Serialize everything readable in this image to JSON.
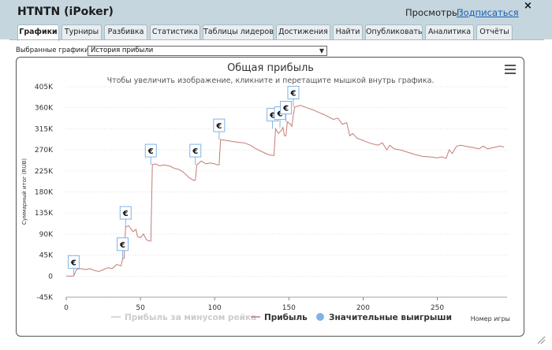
{
  "window": {
    "title": "HTNTN (iPoker)",
    "views_label": "Просмотры:",
    "subscribe_label": "Подписаться",
    "close_label": "×"
  },
  "tabs": [
    {
      "label": "Графики",
      "active": true
    },
    {
      "label": "Турниры",
      "active": false
    },
    {
      "label": "Разбивка",
      "active": false
    },
    {
      "label": "Статистика",
      "active": false
    },
    {
      "label": "Таблицы лидеров",
      "active": false
    },
    {
      "label": "Достижения",
      "active": false
    },
    {
      "label": "Найти",
      "active": false
    },
    {
      "label": "Опубликовать",
      "active": false
    },
    {
      "label": "Аналитика",
      "active": false
    },
    {
      "label": "Отчёты",
      "active": false
    }
  ],
  "graph_select": {
    "label": "Выбранные графики:",
    "value": "История прибыли"
  },
  "chart_data": {
    "type": "line",
    "title": "Общая прибыль",
    "subtitle": "Чтобы увеличить изображение, кликните и перетащите мышкой внутрь графика.",
    "xlabel": "Номер игры",
    "ylabel": "Суммарный итог (RUB)",
    "xlim": [
      0,
      297
    ],
    "ylim": [
      -45000,
      405000
    ],
    "x_ticks": [
      0,
      50,
      100,
      150,
      200,
      250
    ],
    "y_ticks": [
      -45000,
      0,
      45000,
      90000,
      135000,
      180000,
      225000,
      270000,
      315000,
      360000,
      405000
    ],
    "y_tick_labels": [
      "-45K",
      "0",
      "45K",
      "90K",
      "135K",
      "180K",
      "225K",
      "270K",
      "315K",
      "360K",
      "405K"
    ],
    "grid": true,
    "legend_position": "bottom",
    "legend": [
      {
        "name": "Прибыль за минусом рейка",
        "color": "#cccccc",
        "marker": "line",
        "disabled": true
      },
      {
        "name": "Прибыль",
        "color": "#c47a76",
        "marker": "line",
        "disabled": false
      },
      {
        "name": "Значительные выигрыши",
        "color": "#7fb3e8",
        "marker": "dot",
        "disabled": false
      }
    ],
    "series": [
      {
        "name": "Прибыль",
        "color": "#c47a76",
        "points": [
          [
            0,
            0
          ],
          [
            5,
            0
          ],
          [
            7,
            15000
          ],
          [
            10,
            16000
          ],
          [
            13,
            14000
          ],
          [
            16,
            16000
          ],
          [
            19,
            12000
          ],
          [
            22,
            10000
          ],
          [
            25,
            14000
          ],
          [
            28,
            18000
          ],
          [
            31,
            16000
          ],
          [
            34,
            25000
          ],
          [
            37,
            22000
          ],
          [
            38,
            38000
          ],
          [
            39,
            38000
          ],
          [
            40,
            105000
          ],
          [
            42,
            108000
          ],
          [
            45,
            95000
          ],
          [
            47,
            100000
          ],
          [
            48,
            85000
          ],
          [
            50,
            82000
          ],
          [
            52,
            90000
          ],
          [
            54,
            78000
          ],
          [
            56,
            75000
          ],
          [
            57,
            75000
          ],
          [
            58,
            238000
          ],
          [
            60,
            240000
          ],
          [
            63,
            236000
          ],
          [
            66,
            238000
          ],
          [
            70,
            235000
          ],
          [
            73,
            230000
          ],
          [
            76,
            228000
          ],
          [
            79,
            222000
          ],
          [
            83,
            210000
          ],
          [
            86,
            205000
          ],
          [
            87,
            205000
          ],
          [
            88,
            238000
          ],
          [
            91,
            246000
          ],
          [
            94,
            240000
          ],
          [
            97,
            242000
          ],
          [
            100,
            240000
          ],
          [
            102,
            238000
          ],
          [
            103,
            238000
          ],
          [
            104,
            292000
          ],
          [
            108,
            290000
          ],
          [
            112,
            288000
          ],
          [
            116,
            286000
          ],
          [
            120,
            285000
          ],
          [
            124,
            280000
          ],
          [
            128,
            272000
          ],
          [
            132,
            266000
          ],
          [
            136,
            260000
          ],
          [
            139,
            258000
          ],
          [
            140,
            258000
          ],
          [
            141,
            315000
          ],
          [
            143,
            305000
          ],
          [
            145,
            312000
          ],
          [
            146,
            318000
          ],
          [
            147,
            300000
          ],
          [
            148,
            300000
          ],
          [
            149,
            330000
          ],
          [
            151,
            325000
          ],
          [
            152,
            320000
          ],
          [
            153,
            345000
          ],
          [
            154,
            362000
          ],
          [
            158,
            365000
          ],
          [
            162,
            360000
          ],
          [
            166,
            356000
          ],
          [
            170,
            350000
          ],
          [
            174,
            345000
          ],
          [
            177,
            340000
          ],
          [
            180,
            335000
          ],
          [
            183,
            338000
          ],
          [
            186,
            325000
          ],
          [
            189,
            328000
          ],
          [
            191,
            300000
          ],
          [
            193,
            305000
          ],
          [
            196,
            295000
          ],
          [
            200,
            290000
          ],
          [
            205,
            284000
          ],
          [
            210,
            280000
          ],
          [
            213,
            285000
          ],
          [
            216,
            270000
          ],
          [
            218,
            280000
          ],
          [
            221,
            272000
          ],
          [
            225,
            270000
          ],
          [
            230,
            265000
          ],
          [
            235,
            260000
          ],
          [
            240,
            256000
          ],
          [
            245,
            255000
          ],
          [
            250,
            253000
          ],
          [
            253,
            255000
          ],
          [
            256,
            252000
          ],
          [
            258,
            270000
          ],
          [
            260,
            262000
          ],
          [
            263,
            278000
          ],
          [
            266,
            280000
          ],
          [
            270,
            277000
          ],
          [
            274,
            275000
          ],
          [
            278,
            272000
          ],
          [
            281,
            278000
          ],
          [
            284,
            272000
          ],
          [
            288,
            275000
          ],
          [
            292,
            278000
          ],
          [
            295,
            276000
          ]
        ]
      }
    ],
    "significant_wins": [
      {
        "x": 5,
        "y": 0,
        "label": "€"
      },
      {
        "x": 38,
        "y": 38000,
        "label": "€"
      },
      {
        "x": 40,
        "y": 105000,
        "label": "€"
      },
      {
        "x": 57,
        "y": 238000,
        "label": "€"
      },
      {
        "x": 87,
        "y": 238000,
        "label": "€"
      },
      {
        "x": 103,
        "y": 292000,
        "label": "€"
      },
      {
        "x": 139,
        "y": 315000,
        "label": "€"
      },
      {
        "x": 144,
        "y": 318000,
        "label": "€"
      },
      {
        "x": 148,
        "y": 330000,
        "label": "€"
      },
      {
        "x": 153,
        "y": 362000,
        "label": "€"
      }
    ]
  }
}
